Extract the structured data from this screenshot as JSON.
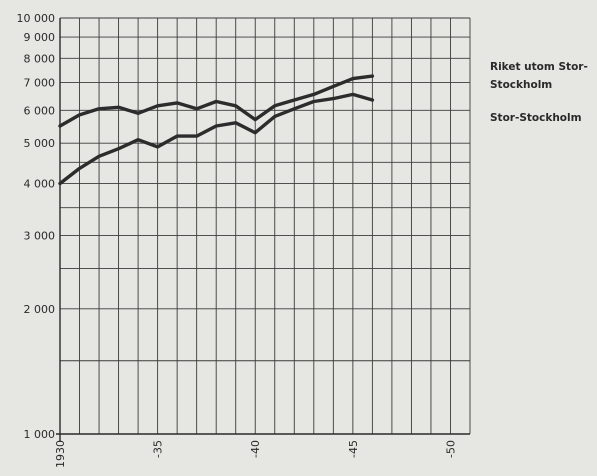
{
  "chart_data": {
    "type": "line",
    "yscale": "log",
    "ylim": [
      1000,
      10000
    ],
    "xlim": [
      1930,
      1951
    ],
    "y_ticks": [
      {
        "value": 1000,
        "label": "1 000"
      },
      {
        "value": 2000,
        "label": "2 000"
      },
      {
        "value": 3000,
        "label": "3 000"
      },
      {
        "value": 4000,
        "label": "4 000"
      },
      {
        "value": 5000,
        "label": "5 000"
      },
      {
        "value": 6000,
        "label": "6 000"
      },
      {
        "value": 7000,
        "label": "7 000"
      },
      {
        "value": 8000,
        "label": "8 000"
      },
      {
        "value": 9000,
        "label": "9 000"
      },
      {
        "value": 10000,
        "label": "10 000"
      }
    ],
    "y_minor_grid": [
      1500,
      2500,
      3500,
      4500
    ],
    "x_ticks": [
      {
        "value": 1930,
        "label": "1930"
      },
      {
        "value": 1935,
        "label": "-35"
      },
      {
        "value": 1940,
        "label": "-40"
      },
      {
        "value": 1945,
        "label": "-45"
      },
      {
        "value": 1950,
        "label": "-50"
      }
    ],
    "grid": true,
    "series": [
      {
        "name": "Riket utom Stor-Stockholm",
        "legend_lines": [
          "Riket utom Stor-",
          "Stockholm"
        ],
        "x": [
          1930,
          1931,
          1932,
          1933,
          1934,
          1935,
          1936,
          1937,
          1938,
          1939,
          1940,
          1941,
          1942,
          1943,
          1944,
          1945,
          1946
        ],
        "y": [
          4000,
          4350,
          4650,
          4850,
          5100,
          4900,
          5200,
          5200,
          5500,
          5600,
          5300,
          5800,
          6050,
          6300,
          6400,
          6550,
          6350
        ]
      },
      {
        "name": "Stor-Stockholm",
        "legend_lines": [
          "Stor-Stockholm"
        ],
        "x": [
          1930,
          1931,
          1932,
          1933,
          1934,
          1935,
          1936,
          1937,
          1938,
          1939,
          1940,
          1941,
          1942,
          1943,
          1944,
          1945,
          1946
        ],
        "y": [
          5500,
          5850,
          6050,
          6100,
          5900,
          6150,
          6250,
          6050,
          6300,
          6150,
          5700,
          6150,
          6350,
          6550,
          6850,
          7150,
          7250
        ]
      }
    ]
  }
}
